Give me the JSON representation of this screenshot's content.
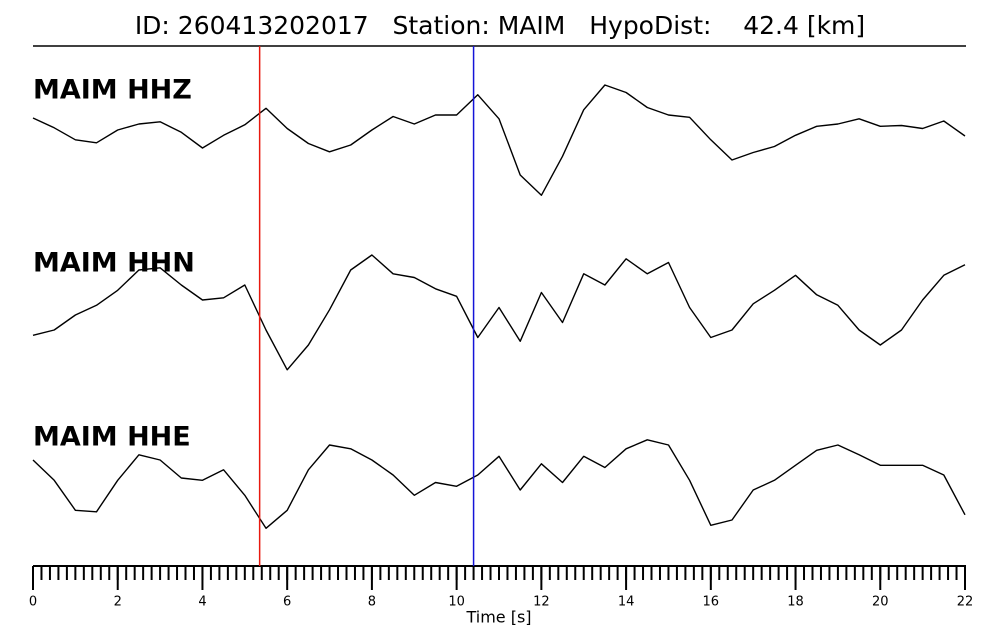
{
  "chart_data": {
    "type": "line",
    "title": "ID: 260413202017   Station: MAIM   HypoDist:    42.4 [km]",
    "xlabel": "Time [s]",
    "x": [
      0,
      0.5,
      1,
      1.5,
      2,
      2.5,
      3,
      3.5,
      4,
      4.5,
      5,
      5.5,
      6,
      6.5,
      7,
      7.5,
      8,
      8.5,
      9,
      9.5,
      10,
      10.5,
      11,
      11.5,
      12,
      12.5,
      13,
      13.5,
      14,
      14.5,
      15,
      15.5,
      16,
      16.5,
      17,
      17.5,
      18,
      18.5,
      19,
      19.5,
      20,
      20.5,
      21,
      21.5,
      22
    ],
    "xlim": [
      0,
      22
    ],
    "xticks": [
      0,
      2,
      4,
      6,
      8,
      10,
      12,
      14,
      16,
      18,
      20,
      22
    ],
    "xminorticks": [
      0,
      0.2,
      0.4,
      0.6,
      0.8,
      1,
      1.2,
      1.4,
      1.6,
      1.8,
      2,
      2.2,
      2.4,
      2.6,
      2.8,
      3,
      3.2,
      3.4,
      3.6,
      3.8,
      4,
      4.2,
      4.4,
      4.6,
      4.8,
      5,
      5.2,
      5.4,
      5.6,
      5.8,
      6,
      6.2,
      6.4,
      6.6,
      6.8,
      7,
      7.2,
      7.4,
      7.6,
      7.8,
      8,
      8.2,
      8.4,
      8.6,
      8.8,
      9,
      9.2,
      9.4,
      9.6,
      9.8,
      10,
      10.2,
      10.4,
      10.6,
      10.8,
      11,
      11.2,
      11.4,
      11.6,
      11.8,
      12,
      12.2,
      12.4,
      12.6,
      12.8,
      13,
      13.2,
      13.4,
      13.6,
      13.8,
      14,
      14.2,
      14.4,
      14.6,
      14.8,
      15,
      15.2,
      15.4,
      15.6,
      15.8,
      16,
      16.2,
      16.4,
      16.6,
      16.8,
      17,
      17.2,
      17.4,
      17.6,
      17.8,
      18,
      18.2,
      18.4,
      18.6,
      18.8,
      19,
      19.2,
      19.4,
      19.6,
      19.8,
      20,
      20.2,
      20.4,
      20.6,
      20.8,
      21,
      21.2,
      21.4,
      21.6,
      21.8,
      22
    ],
    "ylim": [
      -1,
      1
    ],
    "label_color": "#4c9a0e",
    "vlines": [
      {
        "x": 5.35,
        "color": "#e8190e"
      },
      {
        "x": 10.4,
        "color": "#1414d8"
      }
    ],
    "series": [
      {
        "name": "MAIM HHZ",
        "color": "#000000",
        "values": [
          0.16,
          0.03,
          -0.13,
          -0.17,
          0,
          0.08,
          0.11,
          -0.03,
          -0.24,
          -0.07,
          0.07,
          0.29,
          0.02,
          -0.18,
          -0.29,
          -0.2,
          0,
          0.18,
          0.08,
          0.2,
          0.2,
          0.47,
          0.15,
          -0.6,
          -0.87,
          -0.35,
          0.27,
          0.6,
          0.5,
          0.3,
          0.2,
          0.17,
          -0.13,
          -0.4,
          -0.3,
          -0.22,
          -0.07,
          0.05,
          0.08,
          0.15,
          0.05,
          0.06,
          0.02,
          0.12,
          -0.08
        ]
      },
      {
        "name": "MAIM HHN",
        "color": "#000000",
        "values": [
          -0.47,
          -0.4,
          -0.2,
          -0.07,
          0.13,
          0.4,
          0.43,
          0.2,
          0,
          0.03,
          0.2,
          -0.4,
          -0.93,
          -0.6,
          -0.13,
          0.4,
          0.6,
          0.35,
          0.3,
          0.15,
          0.05,
          -0.5,
          -0.1,
          -0.55,
          0.1,
          -0.3,
          0.35,
          0.2,
          0.55,
          0.35,
          0.5,
          -0.1,
          -0.5,
          -0.4,
          -0.05,
          0.13,
          0.33,
          0.07,
          -0.07,
          -0.4,
          -0.6,
          -0.4,
          0,
          0.33,
          0.47
        ]
      },
      {
        "name": "MAIM HHE",
        "color": "#000000",
        "values": [
          0.4,
          0.13,
          -0.27,
          -0.29,
          0.13,
          0.47,
          0.4,
          0.16,
          0.13,
          0.27,
          -0.07,
          -0.51,
          -0.27,
          0.27,
          0.6,
          0.55,
          0.4,
          0.2,
          -0.07,
          0.1,
          0.05,
          0.2,
          0.45,
          0,
          0.35,
          0.1,
          0.45,
          0.3,
          0.55,
          0.67,
          0.6,
          0.13,
          -0.47,
          -0.4,
          0,
          0.13,
          0.33,
          0.53,
          0.6,
          0.47,
          0.33,
          0.33,
          0.33,
          0.2,
          -0.33
        ]
      }
    ]
  }
}
